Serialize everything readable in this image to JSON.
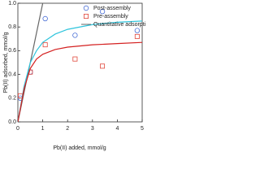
{
  "chart_data": {
    "type": "scatter",
    "x_label": "Pb(II) added, mmol/g",
    "y_label": "Pb(II) adsorbed, mmol/g",
    "xlim": [
      0,
      5
    ],
    "xticks": [
      0,
      1,
      2,
      3,
      4,
      5
    ],
    "ylim": [
      0,
      1.0
    ],
    "yticks": [
      {
        "value": 0,
        "label": "0.0"
      },
      0.2,
      0.4,
      0.6,
      0.8,
      {
        "value": 1.0,
        "label": "1.0"
      }
    ],
    "legend": "upper right",
    "series": [
      {
        "name": "Post-assembly",
        "color": "#4a6fd6",
        "style": "circle",
        "x": [
          0.1,
          0.5,
          1.1,
          2.3,
          3.4,
          4.8
        ],
        "values": [
          0.2,
          0.42,
          0.87,
          0.73,
          0.93,
          0.77
        ]
      },
      {
        "name": "Pre-assembly",
        "color": "#e0483c",
        "style": "square",
        "x": [
          0.1,
          0.5,
          1.1,
          2.3,
          3.4,
          4.8
        ],
        "values": [
          0.22,
          0.42,
          0.65,
          0.53,
          0.47,
          0.72
        ]
      },
      {
        "name": "Quantitative adsorption",
        "color": "#666666",
        "style": "line",
        "x": [
          0,
          1.0
        ],
        "values": [
          0,
          1.0
        ]
      },
      {
        "color": "#2ec4dc",
        "style": "line",
        "x": [
          0,
          0.25,
          0.5,
          0.75,
          1,
          1.5,
          2,
          3,
          4,
          5
        ],
        "values": [
          0,
          0.3,
          0.5,
          0.6,
          0.67,
          0.74,
          0.78,
          0.82,
          0.84,
          0.85
        ]
      },
      {
        "color": "#d42020",
        "style": "line",
        "x": [
          0,
          0.25,
          0.5,
          0.75,
          1,
          1.5,
          2,
          3,
          4,
          5
        ],
        "values": [
          0,
          0.28,
          0.45,
          0.53,
          0.57,
          0.61,
          0.63,
          0.65,
          0.66,
          0.67
        ]
      }
    ]
  }
}
